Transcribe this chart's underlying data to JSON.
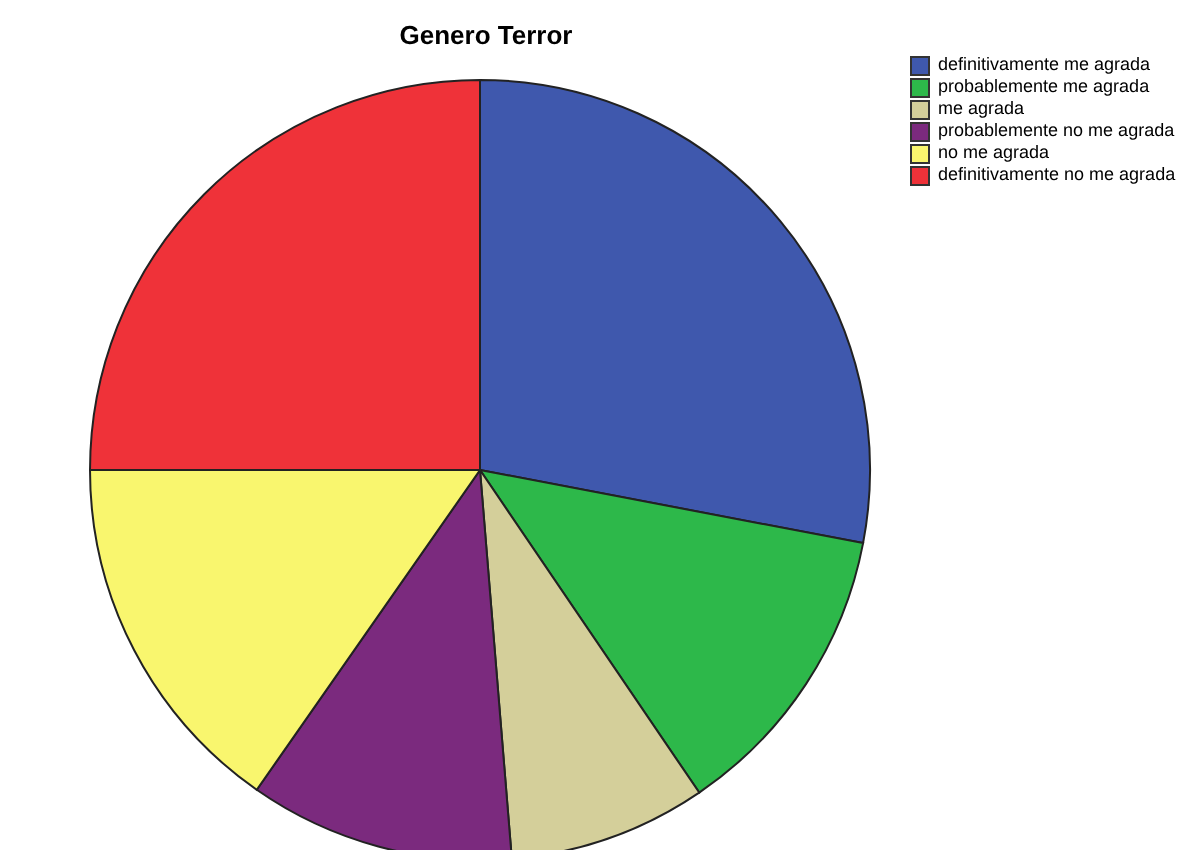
{
  "chart_data": {
    "type": "pie",
    "title": "Genero Terror",
    "categories": [
      "definitivamente me agrada",
      "probablemente me agrada",
      "me agrada",
      "probablemente no me agrada",
      "no me agrada",
      "definitivamente no me agrada"
    ],
    "values": [
      28,
      12.5,
      8.2,
      11,
      15.3,
      25
    ],
    "colors": [
      "#3f58ad",
      "#2db84a",
      "#d4cf9a",
      "#7b2a7e",
      "#f9f66e",
      "#ef3239"
    ],
    "legend": "top right"
  }
}
